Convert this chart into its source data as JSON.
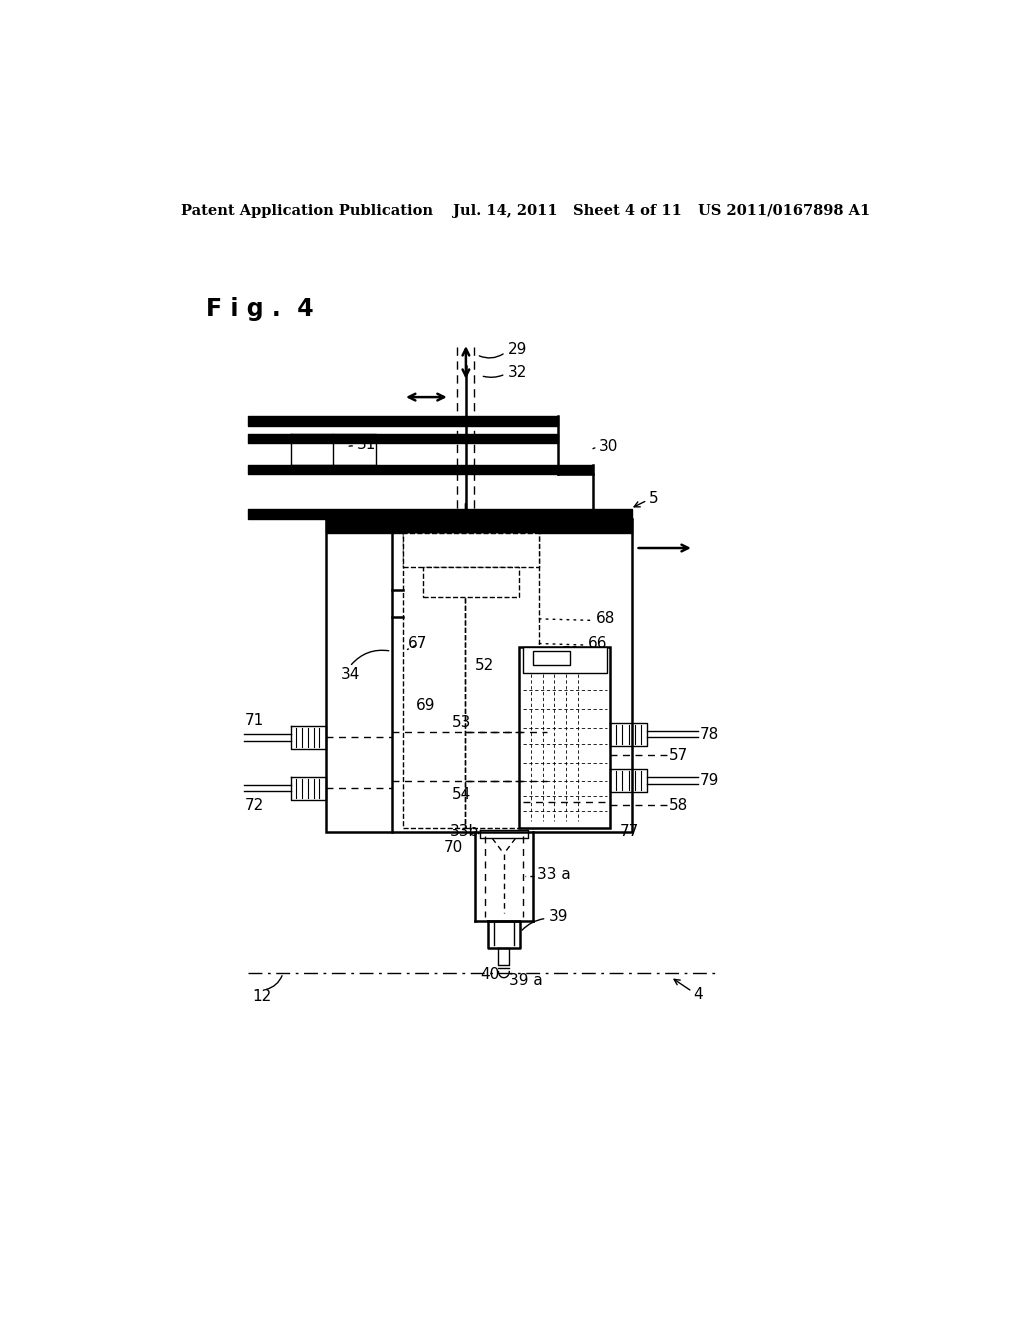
{
  "bg_color": "#ffffff",
  "header_left": "Patent Application Publication",
  "header_mid": "Jul. 14, 2011   Sheet 4 of 11",
  "header_right": "US 2011/0167898 A1",
  "fig_label": "F i g .  4"
}
